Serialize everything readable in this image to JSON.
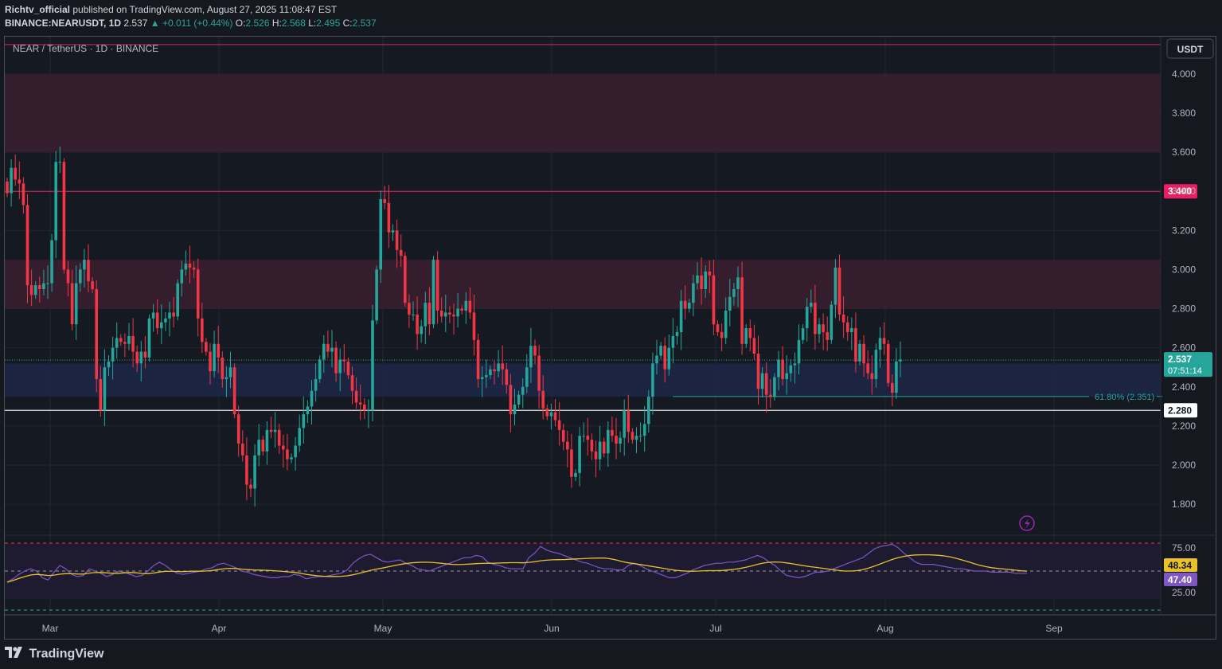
{
  "header": {
    "author": "Richtv_official",
    "published_text": "published on TradingView.com, August 27, 2025 11:08:47 EST",
    "symbol": "BINANCE:NEARUSDT, 1D",
    "last": "2.537",
    "change": "▲ +0.011 (+0.44%)",
    "o_label": "O:",
    "o": "2.526",
    "h_label": "H:",
    "h": "2.568",
    "l_label": "L:",
    "l": "2.495",
    "c_label": "C:",
    "c": "2.537"
  },
  "legend_title": "NEAR / TetherUS · 1D · BINANCE",
  "currency_button": "USDT",
  "footer_brand": "TradingView",
  "colors": {
    "background": "#16181f",
    "up": "#26a69a",
    "down": "#f23645",
    "resistance_zone": "#3a1f2e",
    "support_zone": "#1c2747",
    "rsi_line": "#7e57c2",
    "rsi_ma": "#e8c22b",
    "red_label": "#e91e63"
  },
  "chart_data": {
    "type": "candlestick",
    "price_axis": {
      "min": 1.7,
      "max": 4.15,
      "ticks": [
        "4.000",
        "3.800",
        "3.600",
        "3.400",
        "3.200",
        "3.000",
        "2.800",
        "2.600",
        "2.400",
        "2.200",
        "2.000",
        "1.800"
      ]
    },
    "time_axis": {
      "labels": [
        "Mar",
        "Apr",
        "May",
        "Jun",
        "Jul",
        "Aug",
        "Sep"
      ]
    },
    "zones": [
      {
        "name": "resistance-top",
        "from": 3.6,
        "to": 4.0
      },
      {
        "name": "resistance-mid",
        "from": 2.8,
        "to": 3.05
      },
      {
        "name": "support",
        "from": 2.35,
        "to": 2.52
      }
    ],
    "levels": [
      {
        "name": "top",
        "value": 4.15
      },
      {
        "name": "resistance",
        "value": 3.4,
        "label": "3.400"
      },
      {
        "name": "support",
        "value": 2.28,
        "label": "2.280"
      }
    ],
    "fib": {
      "text": "61.80% (2.351)",
      "value": 2.351
    },
    "last_price": {
      "value": 2.537,
      "label": "2.537",
      "countdown": "07:51:14"
    },
    "closes": [
      3.39,
      3.52,
      3.46,
      3.44,
      3.33,
      2.92,
      2.87,
      2.92,
      2.9,
      2.93,
      2.93,
      3.15,
      3.55,
      3.55,
      3.0,
      2.93,
      2.72,
      2.93,
      3.0,
      3.05,
      2.94,
      2.9,
      2.44,
      2.28,
      2.5,
      2.53,
      2.6,
      2.65,
      2.63,
      2.62,
      2.66,
      2.58,
      2.52,
      2.58,
      2.55,
      2.75,
      2.78,
      2.7,
      2.73,
      2.75,
      2.78,
      2.76,
      2.93,
      3.0,
      3.03,
      3.01,
      3.0,
      2.75,
      2.63,
      2.58,
      2.48,
      2.62,
      2.55,
      2.44,
      2.45,
      2.5,
      2.26,
      2.11,
      2.05,
      1.9,
      1.88,
      2.05,
      2.13,
      2.07,
      2.18,
      2.17,
      2.18,
      2.1,
      2.08,
      2.03,
      2.04,
      2.1,
      2.19,
      2.26,
      2.3,
      2.38,
      2.44,
      2.54,
      2.62,
      2.58,
      2.6,
      2.47,
      2.54,
      2.53,
      2.46,
      2.38,
      2.32,
      2.31,
      2.28,
      2.28,
      2.74,
      3.0,
      3.36,
      3.34,
      3.19,
      3.2,
      3.1,
      3.07,
      2.83,
      2.77,
      2.77,
      2.67,
      2.71,
      2.83,
      2.72,
      3.05,
      2.79,
      2.76,
      2.78,
      2.77,
      2.76,
      2.8,
      2.79,
      2.84,
      2.78,
      2.64,
      2.44,
      2.45,
      2.46,
      2.49,
      2.48,
      2.52,
      2.49,
      2.41,
      2.26,
      2.31,
      2.36,
      2.4,
      2.5,
      2.61,
      2.56,
      2.38,
      2.29,
      2.25,
      2.27,
      2.23,
      2.18,
      2.12,
      2.08,
      1.94,
      1.96,
      2.15,
      2.15,
      2.13,
      2.07,
      2.03,
      2.12,
      2.06,
      2.18,
      2.15,
      2.11,
      2.14,
      2.28,
      2.17,
      2.13,
      2.15,
      2.15,
      2.21,
      2.35,
      2.52,
      2.56,
      2.61,
      2.49,
      2.6,
      2.66,
      2.68,
      2.84,
      2.8,
      2.83,
      2.93,
      2.97,
      2.9,
      2.99,
      2.97,
      2.72,
      2.68,
      2.65,
      2.79,
      2.86,
      2.9,
      2.96,
      2.62,
      2.7,
      2.65,
      2.57,
      2.39,
      2.47,
      2.36,
      2.35,
      2.45,
      2.54,
      2.44,
      2.47,
      2.51,
      2.52,
      2.64,
      2.7,
      2.81,
      2.83,
      2.67,
      2.72,
      2.68,
      2.64,
      2.82,
      3.01,
      2.77,
      2.73,
      2.68,
      2.7,
      2.53,
      2.62,
      2.52,
      2.47,
      2.44,
      2.59,
      2.65,
      2.62,
      2.42,
      2.37,
      2.53,
      2.54
    ],
    "rsi": {
      "overbought": "75.00",
      "oversold": "25.00",
      "value_label": "48.34",
      "ma_label": "47.40",
      "values": [
        40,
        43,
        47,
        50,
        52,
        50,
        44,
        42,
        49,
        55,
        52,
        47,
        45,
        46,
        52,
        50,
        48,
        45,
        47,
        50,
        49,
        47,
        45,
        46,
        50,
        55,
        58,
        55,
        51,
        48,
        47,
        48,
        49,
        50,
        52,
        53,
        56,
        57,
        55,
        53,
        50,
        49,
        47,
        46,
        45,
        44,
        44,
        45,
        45,
        47,
        46,
        43,
        44,
        45,
        45,
        46,
        47,
        48,
        51,
        57,
        61,
        64,
        65,
        62,
        59,
        58,
        59,
        60,
        57,
        55,
        52,
        51,
        50,
        52,
        54,
        56,
        58,
        60,
        62,
        62,
        64,
        63,
        58,
        56,
        55,
        53,
        52,
        52,
        52,
        62,
        66,
        72,
        69,
        67,
        66,
        64,
        62,
        60,
        58,
        57,
        55,
        53,
        52,
        52,
        51,
        51,
        55,
        57,
        55,
        52,
        50,
        48,
        46,
        44,
        44,
        46,
        48,
        51,
        53,
        55,
        56,
        57,
        57,
        58,
        58,
        59,
        60,
        62,
        64,
        62,
        58,
        55,
        50,
        46,
        45,
        44,
        45,
        47,
        49,
        49,
        50,
        52,
        54,
        56,
        58,
        60,
        62,
        66,
        70,
        72,
        73,
        74,
        71,
        66,
        62,
        58,
        56,
        56,
        56,
        55,
        54,
        53,
        52,
        52,
        51,
        50,
        50,
        50,
        49,
        49,
        49,
        49,
        48,
        48,
        48
      ]
    }
  }
}
